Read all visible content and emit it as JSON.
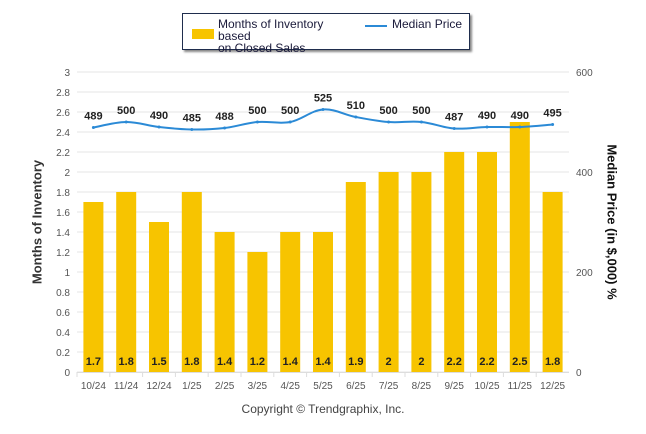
{
  "chart_data": {
    "type": "bar",
    "categories": [
      "10/24",
      "11/24",
      "12/24",
      "1/25",
      "2/25",
      "3/25",
      "4/25",
      "5/25",
      "6/25",
      "7/25",
      "8/25",
      "9/25",
      "10/25",
      "11/25",
      "12/25"
    ],
    "series": [
      {
        "name": "Months of Inventory based on Closed Sales",
        "type": "bar",
        "axis": "left",
        "color": "#f7c400",
        "values": [
          1.7,
          1.8,
          1.5,
          1.8,
          1.4,
          1.2,
          1.4,
          1.4,
          1.9,
          2,
          2,
          2.2,
          2.2,
          2.5,
          1.8
        ],
        "labels": [
          "1.7",
          "1.8",
          "1.5",
          "1.8",
          "1.4",
          "1.2",
          "1.4",
          "1.4",
          "1.9",
          "2",
          "2",
          "2.2",
          "2.2",
          "2.5",
          "1.8"
        ]
      },
      {
        "name": "Median Price",
        "type": "line",
        "axis": "right",
        "color": "#2b8ad6",
        "values": [
          489,
          500,
          490,
          485,
          488,
          500,
          500,
          525,
          510,
          500,
          500,
          487,
          490,
          490,
          495
        ],
        "labels": [
          "489",
          "500",
          "490",
          "485",
          "488",
          "500",
          "500",
          "525",
          "510",
          "500",
          "500",
          "487",
          "490",
          "490",
          "495"
        ]
      }
    ],
    "ylabel": "Months of Inventory",
    "y2label": "Median Price (in $,000) %",
    "ylim": [
      0,
      3
    ],
    "y2lim": [
      0,
      600
    ],
    "yticks": [
      "0",
      "0.2",
      "0.4",
      "0.6",
      "0.8",
      "1",
      "1.2",
      "1.4",
      "1.6",
      "1.8",
      "2",
      "2.2",
      "2.4",
      "2.6",
      "2.8",
      "3"
    ],
    "y2ticks": [
      "0",
      "200",
      "400",
      "600"
    ],
    "grid": true,
    "legend_position": "top-center"
  },
  "legend": {
    "bar_label_line1": "Months of Inventory based",
    "bar_label_line2": "on Closed Sales",
    "line_label": "Median Price"
  },
  "footer": {
    "copyright": "Copyright © Trendgraphix, Inc."
  }
}
